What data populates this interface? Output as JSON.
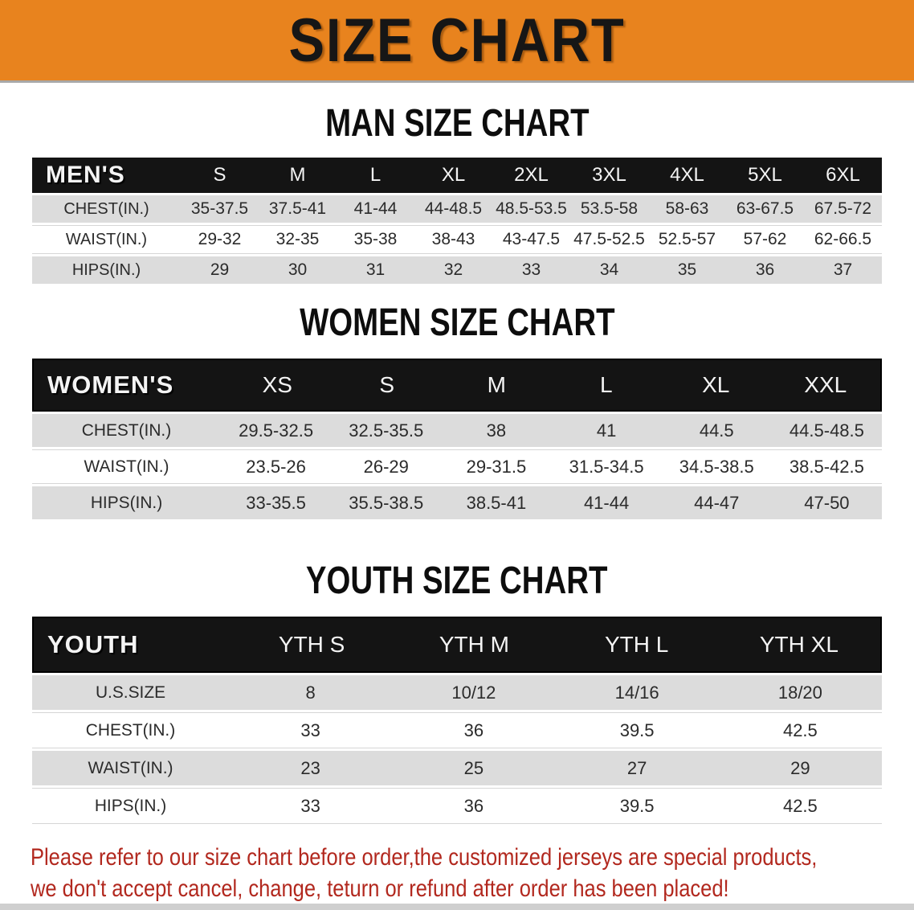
{
  "banner": {
    "title": "SIZE CHART",
    "bg_color": "#e8831e",
    "text_color": "#161616"
  },
  "colors": {
    "table_header_bar": "#141414",
    "row_stripe_gray": "#dcdcdc",
    "disclaimer_red": "#b2281e"
  },
  "sections": [
    {
      "title": "MAN SIZE CHART",
      "header_label": "MEN'S",
      "columns": [
        "S",
        "M",
        "L",
        "XL",
        "2XL",
        "3XL",
        "4XL",
        "5XL",
        "6XL"
      ],
      "rows": [
        {
          "label": "CHEST(IN.)",
          "values": [
            "35-37.5",
            "37.5-41",
            "41-44",
            "44-48.5",
            "48.5-53.5",
            "53.5-58",
            "58-63",
            "63-67.5",
            "67.5-72"
          ]
        },
        {
          "label": "WAIST(IN.)",
          "values": [
            "29-32",
            "32-35",
            "35-38",
            "38-43",
            "43-47.5",
            "47.5-52.5",
            "52.5-57",
            "57-62",
            "62-66.5"
          ]
        },
        {
          "label": "HIPS(IN.)",
          "values": [
            "29",
            "30",
            "31",
            "32",
            "33",
            "34",
            "35",
            "36",
            "37"
          ]
        }
      ]
    },
    {
      "title": "WOMEN SIZE CHART",
      "header_label": "WOMEN'S",
      "columns": [
        "XS",
        "S",
        "M",
        "L",
        "XL",
        "XXL"
      ],
      "rows": [
        {
          "label": "CHEST(IN.)",
          "values": [
            "29.5-32.5",
            "32.5-35.5",
            "38",
            "41",
            "44.5",
            "44.5-48.5"
          ]
        },
        {
          "label": "WAIST(IN.)",
          "values": [
            "23.5-26",
            "26-29",
            "29-31.5",
            "31.5-34.5",
            "34.5-38.5",
            "38.5-42.5"
          ]
        },
        {
          "label": "HIPS(IN.)",
          "values": [
            "33-35.5",
            "35.5-38.5",
            "38.5-41",
            "41-44",
            "44-47",
            "47-50"
          ]
        }
      ]
    },
    {
      "title": "YOUTH SIZE CHART",
      "header_label": "YOUTH",
      "columns": [
        "YTH S",
        "YTH M",
        "YTH L",
        "YTH XL"
      ],
      "rows": [
        {
          "label": "U.S.SIZE",
          "values": [
            "8",
            "10/12",
            "14/16",
            "18/20"
          ]
        },
        {
          "label": "CHEST(IN.)",
          "values": [
            "33",
            "36",
            "39.5",
            "42.5"
          ]
        },
        {
          "label": "WAIST(IN.)",
          "values": [
            "23",
            "25",
            "27",
            "29"
          ]
        },
        {
          "label": "HIPS(IN.)",
          "values": [
            "33",
            "36",
            "39.5",
            "42.5"
          ]
        }
      ]
    }
  ],
  "disclaimer": {
    "line1": "Please refer to our size chart before order,the customized jerseys are special products,",
    "line2": "we don't accept cancel, change, teturn or refund after order has been placed!"
  },
  "chart_data": [
    {
      "type": "table",
      "title": "MAN SIZE CHART",
      "columns": [
        "MEN'S",
        "S",
        "M",
        "L",
        "XL",
        "2XL",
        "3XL",
        "4XL",
        "5XL",
        "6XL"
      ],
      "rows": [
        [
          "CHEST(IN.)",
          "35-37.5",
          "37.5-41",
          "41-44",
          "44-48.5",
          "48.5-53.5",
          "53.5-58",
          "58-63",
          "63-67.5",
          "67.5-72"
        ],
        [
          "WAIST(IN.)",
          "29-32",
          "32-35",
          "35-38",
          "38-43",
          "43-47.5",
          "47.5-52.5",
          "52.5-57",
          "57-62",
          "62-66.5"
        ],
        [
          "HIPS(IN.)",
          "29",
          "30",
          "31",
          "32",
          "33",
          "34",
          "35",
          "36",
          "37"
        ]
      ]
    },
    {
      "type": "table",
      "title": "WOMEN SIZE CHART",
      "columns": [
        "WOMEN'S",
        "XS",
        "S",
        "M",
        "L",
        "XL",
        "XXL"
      ],
      "rows": [
        [
          "CHEST(IN.)",
          "29.5-32.5",
          "32.5-35.5",
          "38",
          "41",
          "44.5",
          "44.5-48.5"
        ],
        [
          "WAIST(IN.)",
          "23.5-26",
          "26-29",
          "29-31.5",
          "31.5-34.5",
          "34.5-38.5",
          "38.5-42.5"
        ],
        [
          "HIPS(IN.)",
          "33-35.5",
          "35.5-38.5",
          "38.5-41",
          "41-44",
          "44-47",
          "47-50"
        ]
      ]
    },
    {
      "type": "table",
      "title": "YOUTH SIZE CHART",
      "columns": [
        "YOUTH",
        "YTH S",
        "YTH M",
        "YTH L",
        "YTH XL"
      ],
      "rows": [
        [
          "U.S.SIZE",
          "8",
          "10/12",
          "14/16",
          "18/20"
        ],
        [
          "CHEST(IN.)",
          "33",
          "36",
          "39.5",
          "42.5"
        ],
        [
          "WAIST(IN.)",
          "23",
          "25",
          "27",
          "29"
        ],
        [
          "HIPS(IN.)",
          "33",
          "36",
          "39.5",
          "42.5"
        ]
      ]
    }
  ]
}
